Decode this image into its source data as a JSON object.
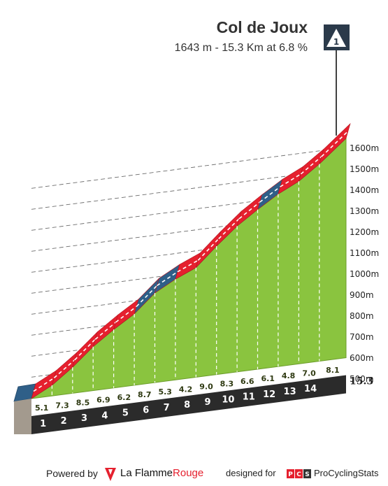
{
  "header": {
    "title": "Col de Joux",
    "subtitle": "1643 m - 15.3 Km at 6.8 %"
  },
  "category_marker": "1",
  "footer": {
    "powered_by": "Powered by",
    "brand_prefix": "La Flamme",
    "brand_suffix": "Rouge",
    "designed_for": "designed for",
    "pcs_badge": "PCS",
    "pcs_name": "ProCyclingStats"
  },
  "colors": {
    "terrain": "#8ac43f",
    "red_band": "#e5202e",
    "blue_band": "#2f5f88",
    "base": "#2b2b2b",
    "side": "#a39a8e",
    "accent": "#e5202e"
  },
  "chart_data": {
    "type": "area",
    "title": "Col de Joux",
    "subtitle": "1643 m - 15.3 Km at 6.8 %",
    "x_unit": "km",
    "total_km": "15.3",
    "km_labels": [
      "1",
      "2",
      "3",
      "4",
      "5",
      "6",
      "7",
      "8",
      "9",
      "10",
      "11",
      "12",
      "13",
      "14"
    ],
    "segment_gradients": [
      5.1,
      7.3,
      8.5,
      6.9,
      6.2,
      8.7,
      5.3,
      4.2,
      9.0,
      8.3,
      6.6,
      6.1,
      4.8,
      7.0,
      8.1
    ],
    "segment_gradient_labels": [
      "5.1",
      "7.3",
      "8.5",
      "6.9",
      "6.2",
      "8.7",
      "5.3",
      "4.2",
      "9.0",
      "8.3",
      "6.6",
      "6.1",
      "4.8",
      "7.0",
      "8.1"
    ],
    "start_band": "blue",
    "segment_bands": [
      "red",
      "red",
      "red",
      "red",
      "red",
      "blue",
      "blue",
      "red",
      "red",
      "red",
      "red",
      "blue",
      "red",
      "red",
      "red"
    ],
    "y_ticks": [
      500,
      600,
      700,
      800,
      900,
      1000,
      1100,
      1200,
      1300,
      1400,
      1500,
      1600
    ],
    "y_tick_labels": [
      "500m",
      "600m",
      "700m",
      "800m",
      "900m",
      "1000m",
      "1100m",
      "1200m",
      "1300m",
      "1400m",
      "1500m",
      "1600m"
    ],
    "ylim": [
      410,
      1643
    ],
    "summit_altitude": 1643,
    "grid": true
  }
}
